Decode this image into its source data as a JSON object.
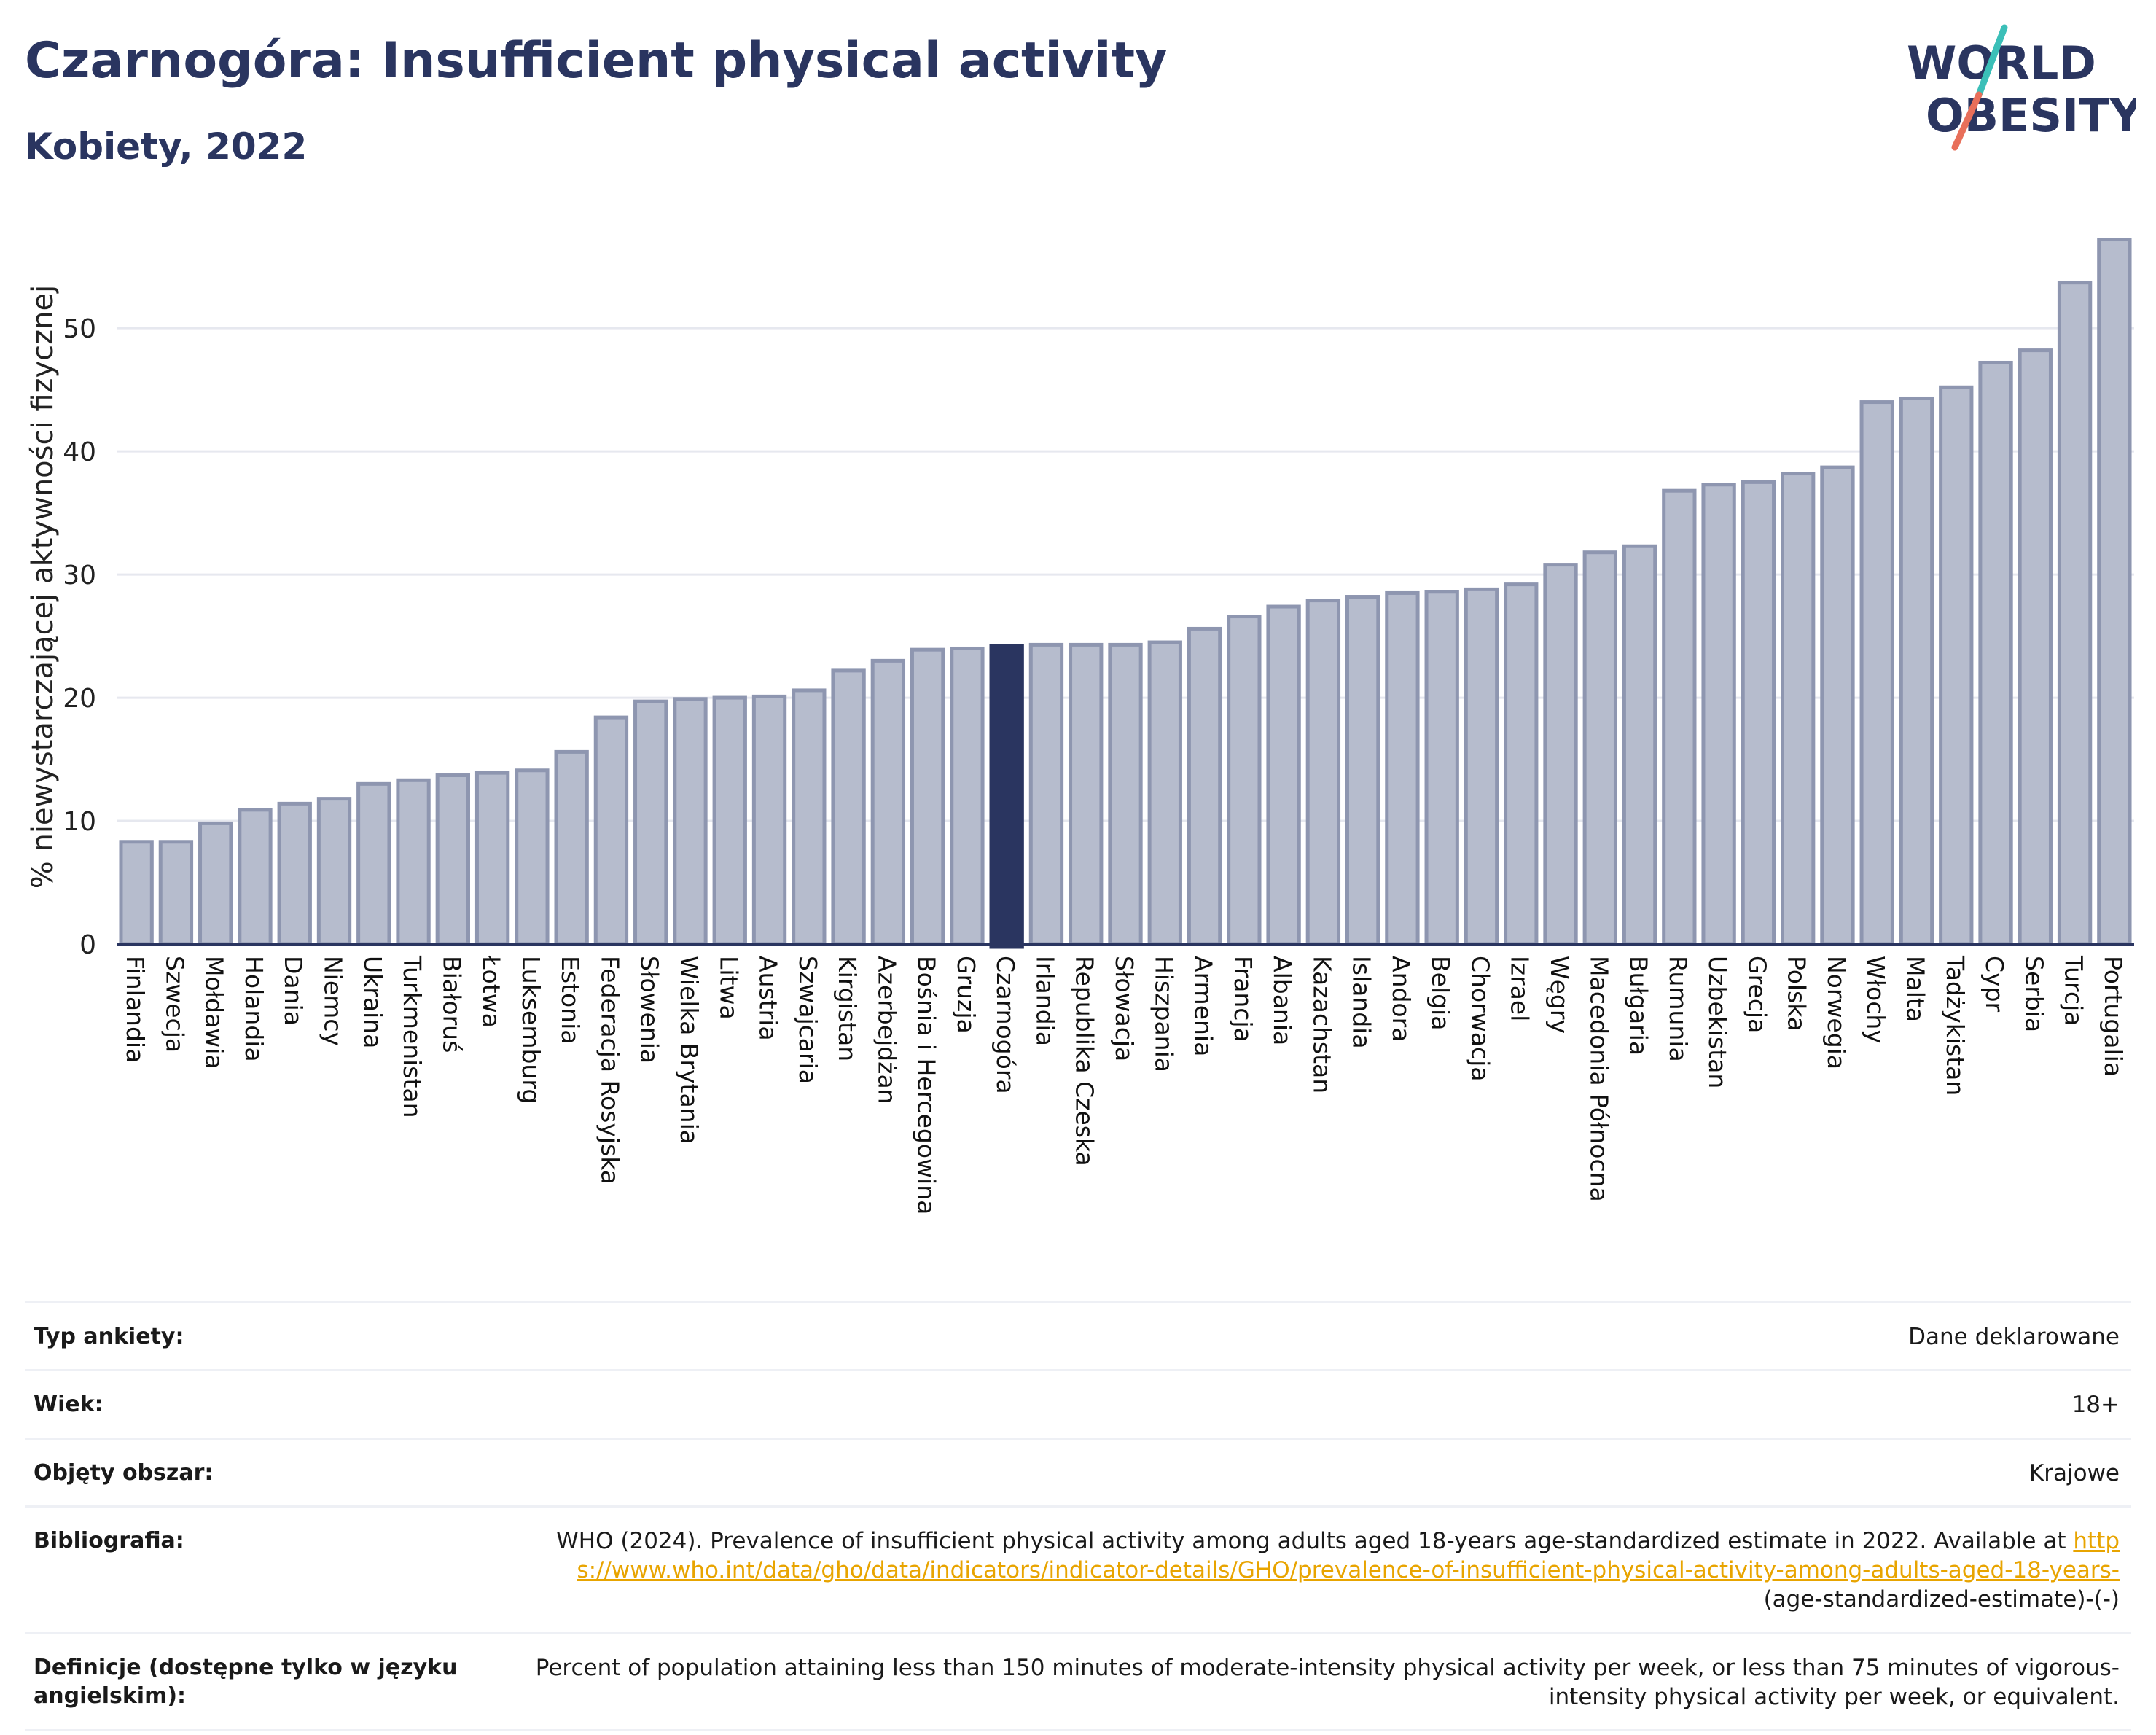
{
  "title": "Czarnogóra: Insufficient physical activity",
  "subtitle": "Kobiety, 2022",
  "logo": {
    "line1": "WORLD",
    "line2": "OBESITY",
    "accent_teal": "#3bbfb8",
    "accent_coral": "#e86f5a"
  },
  "chart_data": {
    "type": "bar",
    "ylabel": "% niewystarczającej aktywności fizycznej",
    "xlabel": "",
    "ylim": [
      0,
      58
    ],
    "yticks": [
      0,
      10,
      20,
      30,
      40,
      50
    ],
    "grid": true,
    "highlight": "Czarnogóra",
    "colors": {
      "bar": "#b6bccd",
      "bar_edge": "#8e96b0",
      "highlight": "#2a3560",
      "grid": "#e6e8ef",
      "axis": "#2a3560"
    },
    "categories": [
      "Finlandia",
      "Szwecja",
      "Mołdawia",
      "Holandia",
      "Dania",
      "Niemcy",
      "Ukraina",
      "Turkmenistan",
      "Białoruś",
      "Łotwa",
      "Luksemburg",
      "Estonia",
      "Federacja Rosyjska",
      "Słowenia",
      "Wielka Brytania",
      "Litwa",
      "Austria",
      "Szwajcaria",
      "Kirgistan",
      "Azerbejdżan",
      "Bośnia i Hercegowina",
      "Gruzja",
      "Czarnogóra",
      "Irlandia",
      "Republika Czeska",
      "Słowacja",
      "Hiszpania",
      "Armenia",
      "Francja",
      "Albania",
      "Kazachstan",
      "Islandia",
      "Andora",
      "Belgia",
      "Chorwacja",
      "Izrael",
      "Węgry",
      "Macedonia Północna",
      "Bułgaria",
      "Rumunia",
      "Uzbekistan",
      "Grecja",
      "Polska",
      "Norwegia",
      "Włochy",
      "Malta",
      "Tadżykistan",
      "Cypr",
      "Serbia",
      "Turcja",
      "Portugalia"
    ],
    "values": [
      8.3,
      8.3,
      9.8,
      10.9,
      11.4,
      11.8,
      13.0,
      13.3,
      13.7,
      13.9,
      14.1,
      15.6,
      18.4,
      19.7,
      19.9,
      20.0,
      20.1,
      20.6,
      22.2,
      23.0,
      23.9,
      24.0,
      24.2,
      24.3,
      24.3,
      24.3,
      24.5,
      25.6,
      26.6,
      27.4,
      27.9,
      28.2,
      28.5,
      28.6,
      28.8,
      29.2,
      30.8,
      31.8,
      32.3,
      36.8,
      37.3,
      37.5,
      38.2,
      38.7,
      44.0,
      44.3,
      45.2,
      47.2,
      48.2,
      53.7,
      57.2
    ]
  },
  "meta": [
    {
      "key": "Typ ankiety:",
      "value": "Dane deklarowane"
    },
    {
      "key": "Wiek:",
      "value": "18+"
    },
    {
      "key": "Objęty obszar:",
      "value": "Krajowe"
    },
    {
      "key": "Bibliografia:",
      "value": "WHO (2024). Prevalence of insufficient physical activity among adults aged 18-years age-standardized estimate in 2022. Available at",
      "link": "https://www.who.int/data/gho/data/indicators/indicator-details/GHO/prevalence-of-insufficient-physical-activity-among-adults-aged-18-years-",
      "suffix": "(age-standardized-estimate)-(-)"
    },
    {
      "key": "Definicje (dostępne tylko w języku angielskim):",
      "value": "Percent of population attaining less than 150 minutes of moderate-intensity physical activity per week, or less than 75 minutes of vigorous-intensity physical activity per week, or equivalent."
    }
  ]
}
